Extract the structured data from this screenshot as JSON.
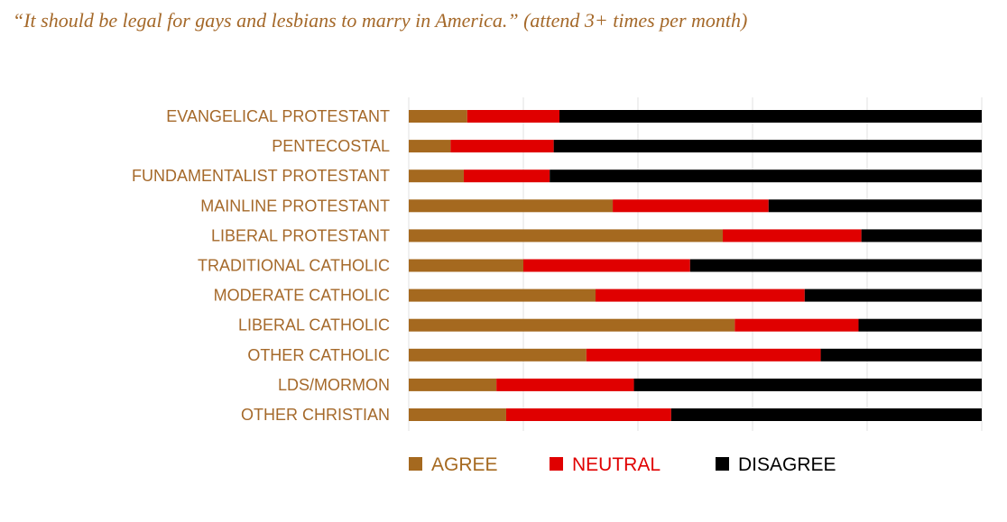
{
  "chart_data": {
    "type": "bar",
    "orientation": "horizontal",
    "stacked": true,
    "percent_stacked": true,
    "title": "“It should be legal for gays and lesbians to marry in America.” (attend 3+ times per month)",
    "categories": [
      "EVANGELICAL PROTESTANT",
      "PENTECOSTAL",
      "FUNDAMENTALIST PROTESTANT",
      "MAINLINE PROTESTANT",
      "LIBERAL PROTESTANT",
      "TRADITIONAL CATHOLIC",
      "MODERATE CATHOLIC",
      "LIBERAL CATHOLIC",
      "OTHER CATHOLIC",
      "LDS/MORMON",
      "OTHER CHRISTIAN"
    ],
    "series": [
      {
        "name": "AGREE",
        "color": "#a5691f",
        "values": [
          10.2,
          7.3,
          9.6,
          35.6,
          54.8,
          20.0,
          32.6,
          56.9,
          31.0,
          15.3,
          17.0
        ]
      },
      {
        "name": "NEUTRAL",
        "color": "#e00000",
        "values": [
          16.1,
          18.0,
          15.0,
          27.2,
          24.2,
          29.1,
          36.5,
          21.6,
          40.9,
          24.0,
          28.8
        ]
      },
      {
        "name": "DISAGREE",
        "color": "#000000",
        "values": [
          73.7,
          74.7,
          75.4,
          37.2,
          21.0,
          50.9,
          30.9,
          21.5,
          28.1,
          60.7,
          54.2
        ]
      }
    ],
    "xlim": [
      0,
      100
    ],
    "grid": true,
    "legend": "bottom"
  }
}
